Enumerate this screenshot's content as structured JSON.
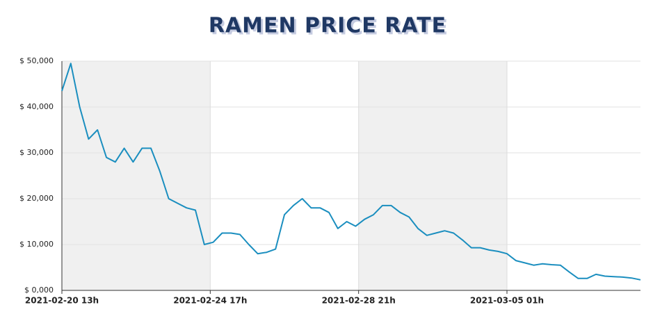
{
  "chart_data": {
    "type": "line",
    "title": "RAMEN PRICE RATE",
    "x": [
      "2021-02-20 13:00",
      "2021-02-20 19:00",
      "2021-02-21 01:00",
      "2021-02-21 07:00",
      "2021-02-21 13:00",
      "2021-02-21 19:00",
      "2021-02-22 01:00",
      "2021-02-22 07:00",
      "2021-02-22 13:00",
      "2021-02-22 19:00",
      "2021-02-23 01:00",
      "2021-02-23 07:00",
      "2021-02-23 13:00",
      "2021-02-23 19:00",
      "2021-02-24 01:00",
      "2021-02-24 07:00",
      "2021-02-24 13:00",
      "2021-02-24 19:00",
      "2021-02-25 01:00",
      "2021-02-25 07:00",
      "2021-02-25 13:00",
      "2021-02-25 19:00",
      "2021-02-26 01:00",
      "2021-02-26 07:00",
      "2021-02-26 13:00",
      "2021-02-26 19:00",
      "2021-02-27 01:00",
      "2021-02-27 07:00",
      "2021-02-27 13:00",
      "2021-02-27 19:00",
      "2021-02-28 01:00",
      "2021-02-28 07:00",
      "2021-02-28 13:00",
      "2021-02-28 19:00",
      "2021-03-01 01:00",
      "2021-03-01 07:00",
      "2021-03-01 13:00",
      "2021-03-01 19:00",
      "2021-03-02 01:00",
      "2021-03-02 07:00",
      "2021-03-02 13:00",
      "2021-03-02 19:00",
      "2021-03-03 01:00",
      "2021-03-03 07:00",
      "2021-03-03 13:00",
      "2021-03-03 19:00",
      "2021-03-04 01:00",
      "2021-03-04 07:00",
      "2021-03-04 13:00",
      "2021-03-04 19:00",
      "2021-03-05 01:00",
      "2021-03-05 07:00",
      "2021-03-05 13:00",
      "2021-03-05 19:00",
      "2021-03-06 01:00",
      "2021-03-06 07:00",
      "2021-03-06 13:00",
      "2021-03-06 19:00",
      "2021-03-07 01:00",
      "2021-03-07 07:00",
      "2021-03-07 13:00",
      "2021-03-07 19:00",
      "2021-03-08 01:00",
      "2021-03-08 07:00",
      "2021-03-08 13:00",
      "2021-03-08 19:00"
    ],
    "series": [
      {
        "color": "#1a8ebf",
        "values": [
          43500,
          49500,
          40000,
          33000,
          35000,
          29000,
          28000,
          31000,
          28000,
          31000,
          31000,
          26000,
          20000,
          19000,
          18000,
          17500,
          10000,
          10500,
          12500,
          12500,
          12200,
          10000,
          8000,
          8300,
          9000,
          16500,
          18500,
          20000,
          18000,
          18000,
          17000,
          13500,
          15000,
          14000,
          15500,
          16500,
          18500,
          18500,
          17000,
          16000,
          13500,
          12000,
          12500,
          13000,
          12500,
          11000,
          9300,
          9300,
          8800,
          8500,
          8000,
          6500,
          6000,
          5500,
          5800,
          5600,
          5500,
          4000,
          2600,
          2600,
          3500,
          3100,
          3000,
          2900,
          2700,
          2300
        ]
      }
    ],
    "xlim": [
      "2021-02-20 13:00",
      "2021-03-08 19:00"
    ],
    "xticks": [
      {
        "value": "2021-02-20 13:00",
        "label": "2021-02-20 13h"
      },
      {
        "value": "2021-02-24 17:00",
        "label": "2021-02-24 17h"
      },
      {
        "value": "2021-02-28 21:00",
        "label": "2021-02-28 21h"
      },
      {
        "value": "2021-03-05 01:00",
        "label": "2021-03-05 01h"
      }
    ],
    "ylim": [
      0,
      50000
    ],
    "yticks": [
      {
        "value": 0,
        "label": "$ 0,000"
      },
      {
        "value": 10000,
        "label": "$ 10,000"
      },
      {
        "value": 20000,
        "label": "$ 20,000"
      },
      {
        "value": 30000,
        "label": "$ 30,000"
      },
      {
        "value": 40000,
        "label": "$ 40,000"
      },
      {
        "value": 50000,
        "label": "$ 50,000"
      }
    ],
    "grid": true
  }
}
